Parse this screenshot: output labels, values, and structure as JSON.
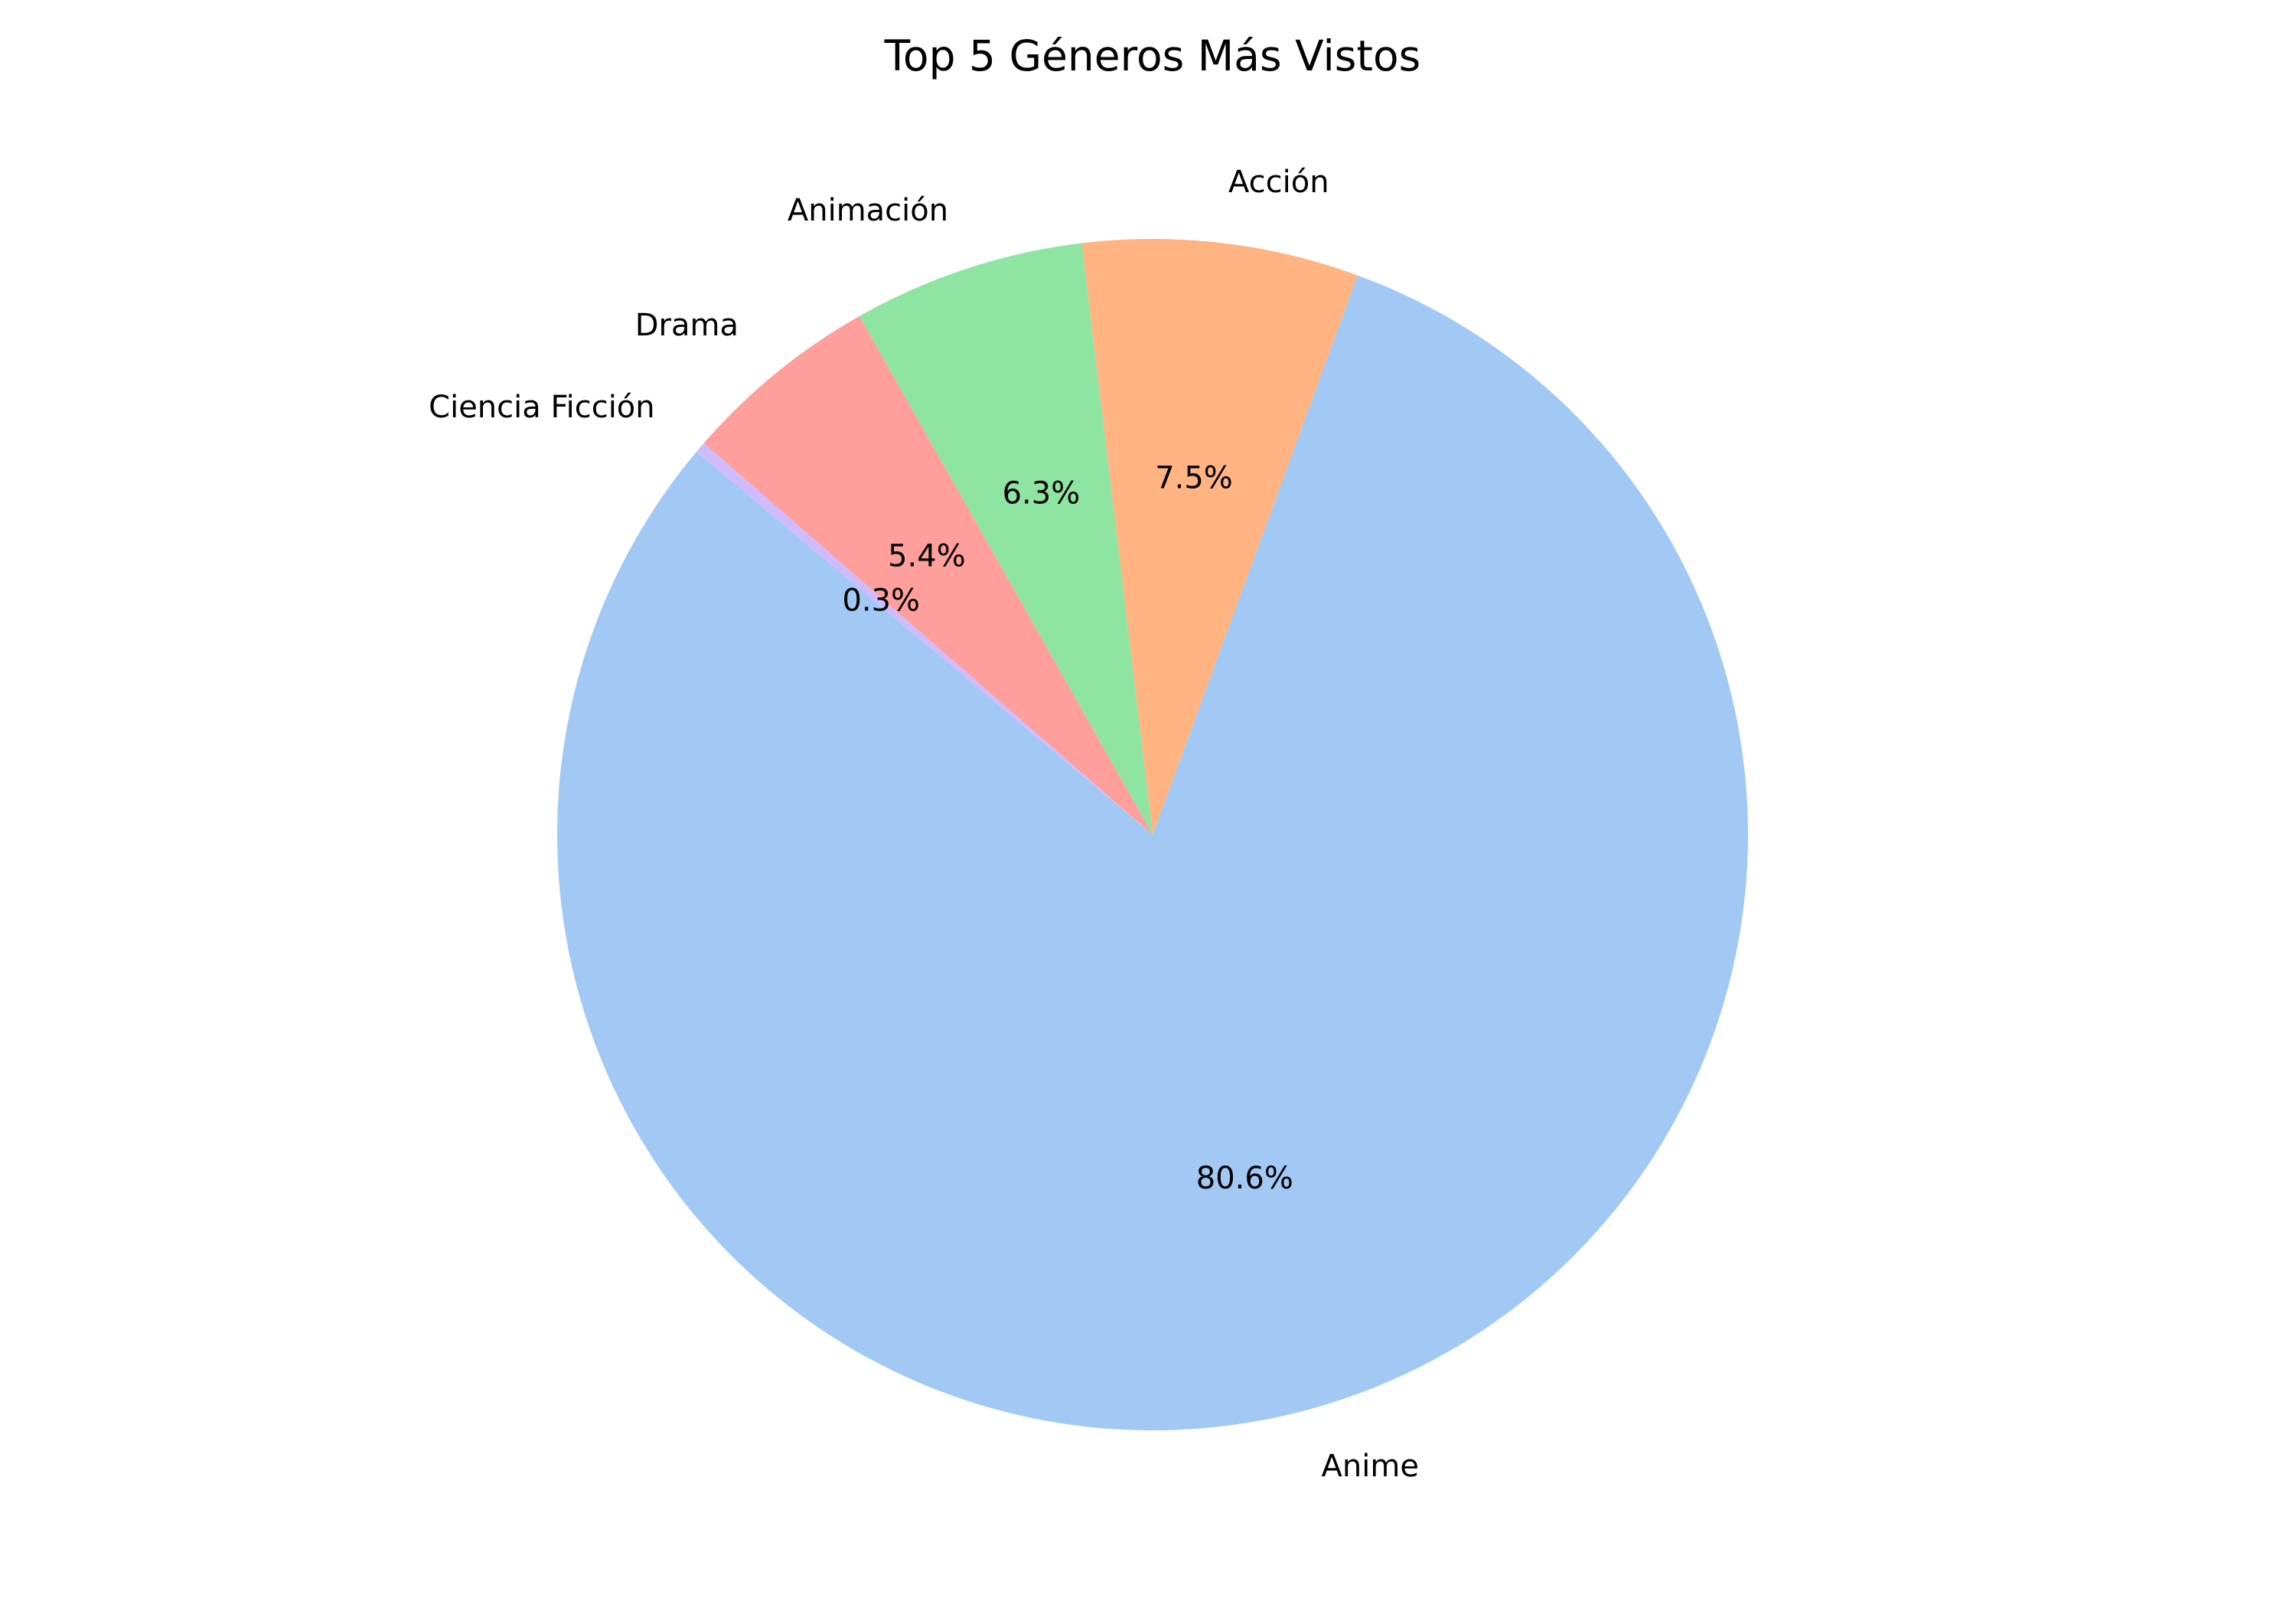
{
  "chart_data": {
    "type": "pie",
    "title": "Top 5 Géneros Más Vistos",
    "slices": [
      {
        "label": "Anime",
        "value": 80.6,
        "pct_label": "80.6%",
        "color": "#a1c9f4"
      },
      {
        "label": "Acción",
        "value": 7.5,
        "pct_label": "7.5%",
        "color": "#ffb482"
      },
      {
        "label": "Animación",
        "value": 6.3,
        "pct_label": "6.3%",
        "color": "#8de5a1"
      },
      {
        "label": "Drama",
        "value": 5.4,
        "pct_label": "5.4%",
        "color": "#ff9f9b"
      },
      {
        "label": "Ciencia Ficción",
        "value": 0.3,
        "pct_label": "0.3%",
        "color": "#d0bbff"
      }
    ],
    "start_angle_deg": 140,
    "direction": "counterclockwise",
    "legend": "none"
  }
}
